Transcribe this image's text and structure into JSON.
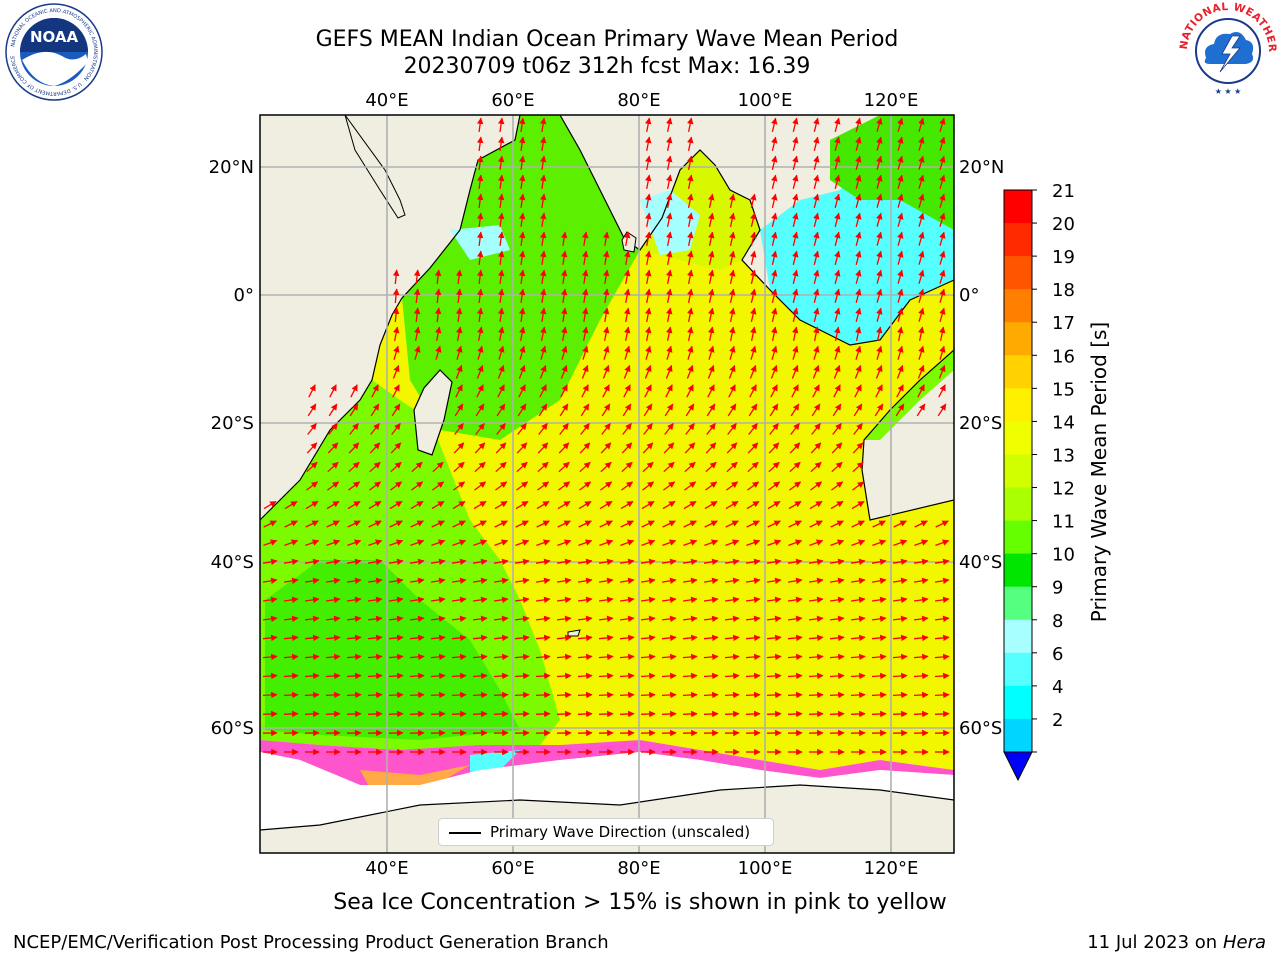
{
  "header": {
    "title_line1": "GEFS MEAN Indian Ocean Primary Wave Mean Period",
    "title_line2": "20230709 t06z 312h fcst   Max: 16.39"
  },
  "logos": {
    "noaa": {
      "text": "NOAA",
      "ring_text": "NATIONAL OCEANIC AND ATMOSPHERIC ADMINISTRATION · U.S. DEPARTMENT OF COMMERCE"
    },
    "nws": {
      "ring_text": "NATIONAL WEATHER SERVICE"
    }
  },
  "map": {
    "region": "Indian Ocean",
    "lon_labels_top": [
      "40°E",
      "60°E",
      "80°E",
      "100°E",
      "120°E"
    ],
    "lon_labels_bottom": [
      "40°E",
      "60°E",
      "80°E",
      "100°E",
      "120°E"
    ],
    "lat_labels_left": [
      "20°N",
      "0°",
      "20°S",
      "40°S",
      "60°S"
    ],
    "lat_labels_right": [
      "20°N",
      "0°",
      "20°S",
      "40°S",
      "60°S"
    ],
    "arrow_color": "#ff0000",
    "land_color": "#efeee0",
    "ice_free_color": "#ffffff",
    "legend": {
      "label": "Primary Wave Direction (unscaled)"
    }
  },
  "colorbar": {
    "label": "Primary Wave Mean Period [s]",
    "ticks": [
      "21",
      "20",
      "19",
      "18",
      "17",
      "16",
      "15",
      "14",
      "13",
      "12",
      "11",
      "10",
      "9",
      "8",
      "6",
      "4",
      "2"
    ],
    "colors": [
      "#ff0000",
      "#ff2a00",
      "#ff5500",
      "#ff8000",
      "#ffaa00",
      "#ffd200",
      "#fff000",
      "#f0ff00",
      "#d2ff00",
      "#aaff00",
      "#66ff00",
      "#00e600",
      "#55ff80",
      "#a8ffff",
      "#55ffff",
      "#00ffff",
      "#00d5ff",
      "#0066ff"
    ],
    "extend_color": "#0000ff"
  },
  "notes": {
    "sea_ice": "Sea Ice Concentration > 15% is shown in pink to yellow"
  },
  "footer": {
    "org": "NCEP/EMC/Verification Post Processing Product Generation Branch",
    "date_prefix": "11 Jul 2023 on ",
    "machine": "Hera"
  }
}
